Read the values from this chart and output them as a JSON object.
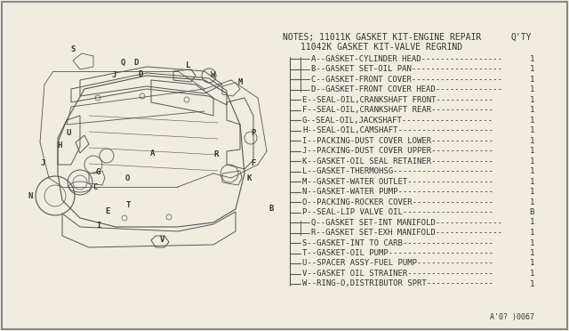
{
  "title_line1": "NOTES; 11011K GASKET KIT-ENGINE REPAIR",
  "title_line2": "11042K GASKET KIT-VALVE REGRIND",
  "qty_label": "Q'TY",
  "parts": [
    {
      "letter": "A",
      "desc": "GASKET-CYLINDER HEAD",
      "qty": "1",
      "indent": 2
    },
    {
      "letter": "B",
      "desc": "GASKET SET-OIL PAN",
      "qty": "1",
      "indent": 2
    },
    {
      "letter": "C",
      "desc": "GASKET-FRONT COVER",
      "qty": "1",
      "indent": 2
    },
    {
      "letter": "D",
      "desc": "GASKET-FRONT COVER HEAD",
      "qty": "1",
      "indent": 2
    },
    {
      "letter": "E",
      "desc": "SEAL-OIL,CRANKSHAFT FRONT",
      "qty": "1",
      "indent": 2
    },
    {
      "letter": "F",
      "desc": "SEAL-OIL,CRANKSHAFT REAR",
      "qty": "1",
      "indent": 2
    },
    {
      "letter": "G",
      "desc": "SEAL-OIL,JACKSHAFT",
      "qty": "1",
      "indent": 2
    },
    {
      "letter": "H",
      "desc": "SEAL-OIL,CAMSHAFT",
      "qty": "1",
      "indent": 2
    },
    {
      "letter": "I",
      "desc": "PACKING-DUST COVER LOWER",
      "qty": "1",
      "indent": 2
    },
    {
      "letter": "J",
      "desc": "PACKING-DUST COVER UPPER",
      "qty": "1",
      "indent": 2
    },
    {
      "letter": "K",
      "desc": "GASKET-OIL SEAL RETAINER",
      "qty": "1",
      "indent": 2
    },
    {
      "letter": "L",
      "desc": "GASKET-THERMOHSG",
      "qty": "1",
      "indent": 2
    },
    {
      "letter": "M",
      "desc": "GASKET-WATER OUTLET",
      "qty": "1",
      "indent": 2
    },
    {
      "letter": "N",
      "desc": "GASKET-WATER PUMP",
      "qty": "1",
      "indent": 2
    },
    {
      "letter": "O",
      "desc": "PACKING-ROCKER COVER",
      "qty": "1",
      "indent": 2
    },
    {
      "letter": "P",
      "desc": "SEAL-LIP VALVE OIL",
      "qty": "B",
      "indent": 2
    },
    {
      "letter": "Q",
      "desc": "GASKET SET-INT MANIFOLD",
      "qty": "1",
      "indent": 2
    },
    {
      "letter": "R",
      "desc": "GASKET SET-EXH MANIFOLD",
      "qty": "1",
      "indent": 2
    },
    {
      "letter": "S",
      "desc": "GASKET-INT TO CARB",
      "qty": "1",
      "indent": 2
    },
    {
      "letter": "T",
      "desc": "GASKET-OIL PUMP",
      "qty": "1",
      "indent": 2
    },
    {
      "letter": "U",
      "desc": "SPACER ASSY-FUEL PUMP",
      "qty": "1",
      "indent": 2
    },
    {
      "letter": "V",
      "desc": "GASKET OIL STRAINER",
      "qty": "1",
      "indent": 2
    },
    {
      "letter": "W",
      "desc": "RING-O,DISTRIBUTOR SPRT",
      "qty": "1",
      "indent": 2
    }
  ],
  "footer": "A'0? )0067",
  "bg_color": "#f0ece0",
  "text_color": "#333333",
  "line_color": "#555555",
  "font_size": 6.5,
  "title_font_size": 7.0
}
